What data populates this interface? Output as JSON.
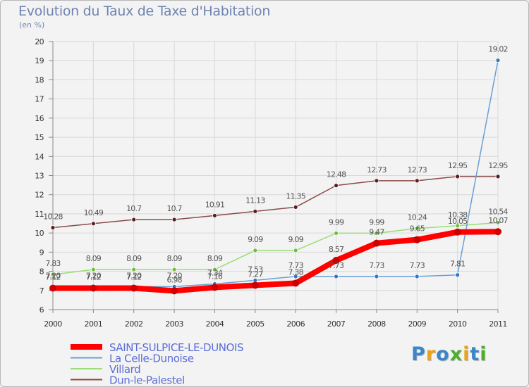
{
  "title": "Evolution du Taux de Taxe d'Habitation",
  "subtitle": "(en %)",
  "logo": {
    "text": "Proxiti",
    "colors": [
      "#3a86c8",
      "#e8a21c",
      "#3a86c8",
      "#4caf2a",
      "#e8a21c",
      "#3a86c8",
      "#4caf2a"
    ]
  },
  "chart_data": {
    "type": "line",
    "title": "Evolution du Taux de Taxe d'Habitation",
    "ylabel": "(en %)",
    "x": [
      "2000",
      "2001",
      "2002",
      "2003",
      "2004",
      "2005",
      "2006",
      "2007",
      "2008",
      "2009",
      "2010",
      "2011"
    ],
    "ylim": [
      6,
      20
    ],
    "yticks": [
      "6",
      "7",
      "8",
      "9",
      "10",
      "11",
      "12",
      "13",
      "14",
      "15",
      "16",
      "17",
      "18",
      "19",
      "20"
    ],
    "grid": true,
    "legend": "bottom-left",
    "series": [
      {
        "name": "SAINT-SULPICE-LE-DUNOIS",
        "color": "#ff0000",
        "values": [
          7.12,
          7.12,
          7.12,
          6.98,
          7.16,
          7.27,
          7.38,
          8.57,
          9.47,
          9.65,
          10.05,
          10.07
        ],
        "labels": [
          "7.12",
          "7.12",
          "7.12",
          "6.98",
          "7.16",
          "7.27",
          "7.38",
          "8.57",
          "9.47",
          "9.65",
          "10.05",
          "10.07"
        ]
      },
      {
        "name": "La Celle-Dunoise",
        "color": "#6a9fd4",
        "values": [
          7.2,
          7.2,
          7.2,
          7.2,
          7.34,
          7.53,
          7.73,
          7.73,
          7.73,
          7.73,
          7.81,
          19.02
        ],
        "labels": [
          "7.20",
          "7.20",
          "7.20",
          "7.20",
          "7.34",
          "7.53",
          "7.73",
          "7.73",
          "7.73",
          "7.73",
          "7.81",
          "19.02"
        ]
      },
      {
        "name": "Villard",
        "color": "#99dd77",
        "values": [
          7.83,
          8.09,
          8.09,
          8.09,
          8.09,
          9.09,
          9.09,
          9.99,
          9.99,
          10.24,
          10.38,
          10.54
        ],
        "labels": [
          "7.83",
          "8.09",
          "8.09",
          "8.09",
          "8.09",
          "9.09",
          "9.09",
          "9.99",
          "9.99",
          "10.24",
          "10.38",
          "10.54"
        ]
      },
      {
        "name": "Dun-le-Palestel",
        "color": "#8a4a4a",
        "values": [
          10.28,
          10.49,
          10.7,
          10.7,
          10.91,
          11.13,
          11.35,
          12.48,
          12.73,
          12.73,
          12.95,
          12.95
        ],
        "labels": [
          "10.28",
          "10.49",
          "10.7",
          "10.7",
          "10.91",
          "11.13",
          "11.35",
          "12.48",
          "12.73",
          "12.73",
          "12.95",
          "12.95"
        ]
      }
    ]
  }
}
